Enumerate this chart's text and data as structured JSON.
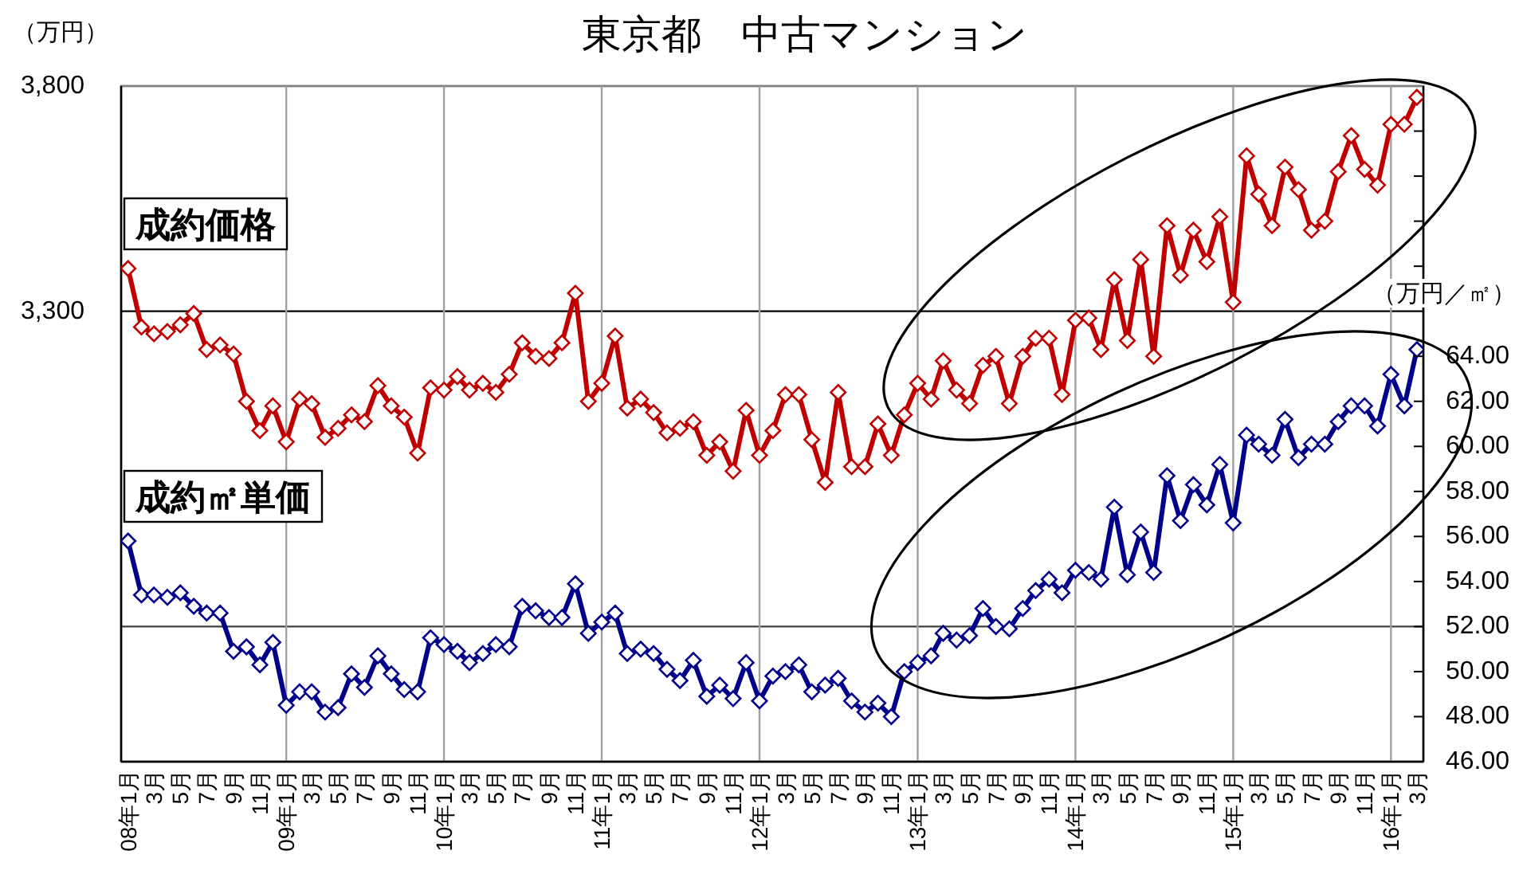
{
  "chart_data": {
    "type": "line",
    "title": "東京都　中古マンション",
    "ylabel": "（万円）",
    "y2label": "（万円／㎡）",
    "x": [
      "2008-01",
      "2008-02",
      "2008-03",
      "2008-04",
      "2008-05",
      "2008-06",
      "2008-07",
      "2008-08",
      "2008-09",
      "2008-10",
      "2008-11",
      "2008-12",
      "2009-01",
      "2009-02",
      "2009-03",
      "2009-04",
      "2009-05",
      "2009-06",
      "2009-07",
      "2009-08",
      "2009-09",
      "2009-10",
      "2009-11",
      "2009-12",
      "2010-01",
      "2010-02",
      "2010-03",
      "2010-04",
      "2010-05",
      "2010-06",
      "2010-07",
      "2010-08",
      "2010-09",
      "2010-10",
      "2010-11",
      "2010-12",
      "2011-01",
      "2011-02",
      "2011-03",
      "2011-04",
      "2011-05",
      "2011-06",
      "2011-07",
      "2011-08",
      "2011-09",
      "2011-10",
      "2011-11",
      "2011-12",
      "2012-01",
      "2012-02",
      "2012-03",
      "2012-04",
      "2012-05",
      "2012-06",
      "2012-07",
      "2012-08",
      "2012-09",
      "2012-10",
      "2012-11",
      "2012-12",
      "2013-01",
      "2013-02",
      "2013-03",
      "2013-04",
      "2013-05",
      "2013-06",
      "2013-07",
      "2013-08",
      "2013-09",
      "2013-10",
      "2013-11",
      "2013-12",
      "2014-01",
      "2014-02",
      "2014-03",
      "2014-04",
      "2014-05",
      "2014-06",
      "2014-07",
      "2014-08",
      "2014-09",
      "2014-10",
      "2014-11",
      "2014-12",
      "2015-01",
      "2015-02",
      "2015-03",
      "2015-04",
      "2015-05",
      "2015-06",
      "2015-07",
      "2015-08",
      "2015-09",
      "2015-10",
      "2015-11",
      "2015-12",
      "2016-01",
      "2016-02",
      "2016-03"
    ],
    "xlim": [
      "2007-12-16",
      "2016-03-16"
    ],
    "xticks": [
      {
        "value": "2008-01",
        "label": "08年1月"
      },
      {
        "value": "2008-03",
        "label": "3月"
      },
      {
        "value": "2008-05",
        "label": "5月"
      },
      {
        "value": "2008-07",
        "label": "7月"
      },
      {
        "value": "2008-09",
        "label": "9月"
      },
      {
        "value": "2008-11",
        "label": "11月"
      },
      {
        "value": "2009-01",
        "label": "09年1月"
      },
      {
        "value": "2009-03",
        "label": "3月"
      },
      {
        "value": "2009-05",
        "label": "5月"
      },
      {
        "value": "2009-07",
        "label": "7月"
      },
      {
        "value": "2009-09",
        "label": "9月"
      },
      {
        "value": "2009-11",
        "label": "11月"
      },
      {
        "value": "2010-01",
        "label": "10年1月"
      },
      {
        "value": "2010-03",
        "label": "3月"
      },
      {
        "value": "2010-05",
        "label": "5月"
      },
      {
        "value": "2010-07",
        "label": "7月"
      },
      {
        "value": "2010-09",
        "label": "9月"
      },
      {
        "value": "2010-11",
        "label": "11月"
      },
      {
        "value": "2011-01",
        "label": "11年1月"
      },
      {
        "value": "2011-03",
        "label": "3月"
      },
      {
        "value": "2011-05",
        "label": "5月"
      },
      {
        "value": "2011-07",
        "label": "7月"
      },
      {
        "value": "2011-09",
        "label": "9月"
      },
      {
        "value": "2011-11",
        "label": "11月"
      },
      {
        "value": "2012-01",
        "label": "12年1月"
      },
      {
        "value": "2012-03",
        "label": "3月"
      },
      {
        "value": "2012-05",
        "label": "5月"
      },
      {
        "value": "2012-07",
        "label": "7月"
      },
      {
        "value": "2012-09",
        "label": "9月"
      },
      {
        "value": "2012-11",
        "label": "11月"
      },
      {
        "value": "2013-01",
        "label": "13年1月"
      },
      {
        "value": "2013-03",
        "label": "3月"
      },
      {
        "value": "2013-05",
        "label": "5月"
      },
      {
        "value": "2013-07",
        "label": "7月"
      },
      {
        "value": "2013-09",
        "label": "9月"
      },
      {
        "value": "2013-11",
        "label": "11月"
      },
      {
        "value": "2014-01",
        "label": "14年1月"
      },
      {
        "value": "2014-03",
        "label": "3月"
      },
      {
        "value": "2014-05",
        "label": "5月"
      },
      {
        "value": "2014-07",
        "label": "7月"
      },
      {
        "value": "2014-09",
        "label": "9月"
      },
      {
        "value": "2014-11",
        "label": "11月"
      },
      {
        "value": "2015-01",
        "label": "15年1月"
      },
      {
        "value": "2015-03",
        "label": "3月"
      },
      {
        "value": "2015-05",
        "label": "5月"
      },
      {
        "value": "2015-07",
        "label": "7月"
      },
      {
        "value": "2015-09",
        "label": "9月"
      },
      {
        "value": "2015-11",
        "label": "11月"
      },
      {
        "value": "2016-01",
        "label": "16年1月"
      },
      {
        "value": "2016-03",
        "label": "3月"
      }
    ],
    "series": [
      {
        "name": "成約価格",
        "color": "#c00000",
        "values": [
          3395,
          3265,
          3250,
          3255,
          3270,
          3295,
          3215,
          3225,
          3205,
          3100,
          3035,
          3090,
          3010,
          3105,
          3095,
          3020,
          3040,
          3070,
          3055,
          3135,
          3090,
          3065,
          2985,
          3130,
          3125,
          3155,
          3125,
          3140,
          3120,
          3160,
          3230,
          3200,
          3195,
          3230,
          3340,
          3100,
          3140,
          3245,
          3085,
          3105,
          3075,
          3030,
          3040,
          3055,
          2980,
          3010,
          2945,
          3080,
          2980,
          3035,
          3115,
          3115,
          3015,
          2920,
          3120,
          2955,
          2955,
          3050,
          2980,
          3070,
          3140,
          3105,
          3190,
          3125,
          3095,
          3180,
          3200,
          3095,
          3200,
          3240,
          3240,
          3115,
          3280,
          3285,
          3215,
          3370,
          3235,
          3415,
          3200,
          3490,
          3380,
          3480,
          3410,
          3510,
          3320,
          3645,
          3560,
          3490,
          3620,
          3570,
          3480,
          3500,
          3610,
          3690,
          3615,
          3580,
          3715,
          3715,
          3775
        ]
      },
      {
        "name": "成約㎡単価",
        "color": "#00008b",
        "axis": "y2",
        "values": [
          55.8,
          53.4,
          53.4,
          53.3,
          53.5,
          52.9,
          52.6,
          52.6,
          50.9,
          51.1,
          50.3,
          51.3,
          48.5,
          49.1,
          49.1,
          48.2,
          48.4,
          49.9,
          49.3,
          50.7,
          49.9,
          49.2,
          49.1,
          51.5,
          51.2,
          50.9,
          50.4,
          50.8,
          51.2,
          51.1,
          52.9,
          52.7,
          52.4,
          52.4,
          53.9,
          51.7,
          52.2,
          52.6,
          50.8,
          51.0,
          50.8,
          50.1,
          49.6,
          50.5,
          48.9,
          49.4,
          48.8,
          50.4,
          48.7,
          49.8,
          50.0,
          50.3,
          49.1,
          49.4,
          49.7,
          48.7,
          48.2,
          48.6,
          48.0,
          50.0,
          50.4,
          50.7,
          51.7,
          51.4,
          51.6,
          52.8,
          52.0,
          51.9,
          52.8,
          53.6,
          54.1,
          53.5,
          54.5,
          54.4,
          54.1,
          57.3,
          54.3,
          56.2,
          54.4,
          58.7,
          56.7,
          58.3,
          57.4,
          59.2,
          56.6,
          60.5,
          60.1,
          59.6,
          61.2,
          59.5,
          60.1,
          60.1,
          61.1,
          61.8,
          61.8,
          60.9,
          63.2,
          61.8,
          64.3
        ]
      }
    ],
    "ylim": [
      2300,
      3800
    ],
    "yticks": [
      {
        "value": 3300,
        "label": "3,300"
      },
      {
        "value": 3800,
        "label": "3,800"
      }
    ],
    "y2lim": [
      46,
      76
    ],
    "y2ticks": [
      {
        "value": 46,
        "label": "46.00"
      },
      {
        "value": 48,
        "label": "48.00"
      },
      {
        "value": 50,
        "label": "50.00"
      },
      {
        "value": 52,
        "label": "52.00"
      },
      {
        "value": 54,
        "label": "54.00"
      },
      {
        "value": 56,
        "label": "56.00"
      },
      {
        "value": 58,
        "label": "58.00"
      },
      {
        "value": 60,
        "label": "60.00"
      },
      {
        "value": 62,
        "label": "62.00"
      },
      {
        "value": 64,
        "label": "64.00"
      },
      {
        "value": 68,
        "label": null
      },
      {
        "value": 70,
        "label": null
      },
      {
        "value": 72,
        "label": null
      },
      {
        "value": 74,
        "label": null
      }
    ],
    "marker": "diamond",
    "line_style": "solid",
    "ref_lines": [
      {
        "axis": "y",
        "value": 3300,
        "color": "#000000"
      },
      {
        "axis": "y2",
        "value": 52,
        "color": "#404040"
      },
      {
        "axis": "x",
        "value": "2009-01",
        "color": "#a0a0a0"
      },
      {
        "axis": "x",
        "value": "2010-01",
        "color": "#a0a0a0"
      },
      {
        "axis": "x",
        "value": "2011-01",
        "color": "#a0a0a0"
      },
      {
        "axis": "x",
        "value": "2012-01",
        "color": "#a0a0a0"
      },
      {
        "axis": "x",
        "value": "2013-01",
        "color": "#a0a0a0"
      },
      {
        "axis": "x",
        "value": "2014-01",
        "color": "#a0a0a0"
      },
      {
        "axis": "x",
        "value": "2015-01",
        "color": "#a0a0a0"
      },
      {
        "axis": "x",
        "value": "2016-01",
        "color": "#a0a0a0"
      }
    ]
  }
}
